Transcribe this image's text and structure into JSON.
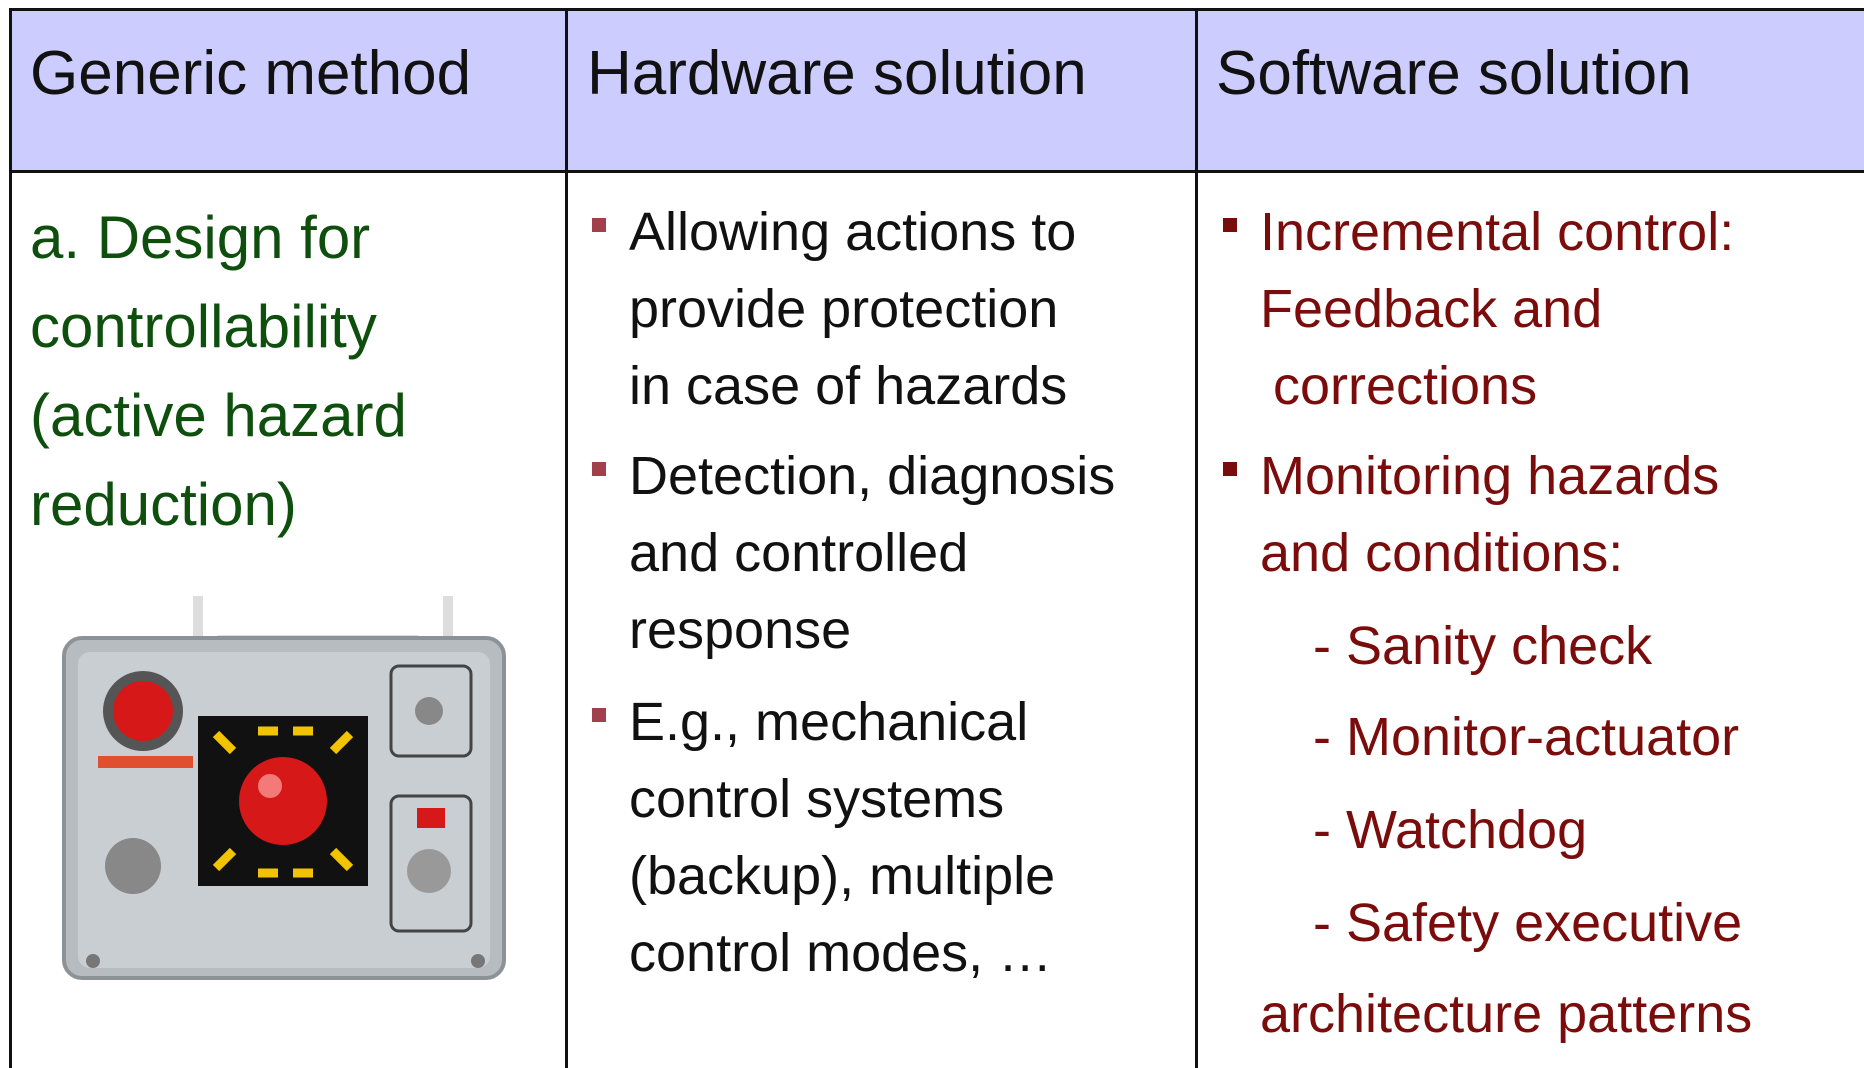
{
  "table": {
    "header": [
      "Generic method",
      "Hardware solution",
      "Software solution"
    ],
    "method": {
      "lines": [
        "a. Design for",
        "controllability",
        "(active hazard",
        "reduction)"
      ]
    },
    "hardware": [
      {
        "lines": [
          "Allowing actions to",
          "provide protection",
          "in case of hazards"
        ]
      },
      {
        "lines": [
          "Detection, diagnosis",
          "and controlled",
          "response"
        ]
      },
      {
        "lines": [
          "E.g., mechanical",
          "control systems",
          "(backup), multiple",
          "control modes, …"
        ]
      }
    ],
    "software": [
      {
        "lines": [
          "Incremental control:",
          "Feedback and",
          "corrections"
        ]
      },
      {
        "lines": [
          "Monitoring hazards",
          "and conditions:"
        ]
      }
    ],
    "software_subitems": [
      "- Sanity check",
      "- Monitor-actuator",
      "- Watchdog",
      "- Safety executive"
    ],
    "software_tail": "architecture patterns"
  }
}
